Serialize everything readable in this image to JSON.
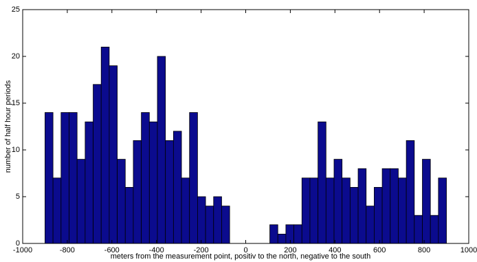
{
  "chart_data": {
    "type": "histogram",
    "xlabel": "meters from the measurement point, positiv to the north, negative to the south",
    "ylabel": "number of half hour periods",
    "bins": [
      -900,
      -864,
      -828,
      -792,
      -756,
      -720,
      -684,
      -648,
      -612,
      -576,
      -540,
      -504,
      -468,
      -432,
      -396,
      -360,
      -324,
      -288,
      -252,
      -216,
      -180,
      -144,
      -108,
      -72,
      -36,
      0,
      36,
      72,
      108,
      144,
      180,
      216,
      252,
      288,
      324,
      360,
      396,
      432,
      468,
      504,
      540,
      576,
      612,
      648,
      684,
      720,
      756,
      792,
      828,
      864,
      900
    ],
    "values": [
      14,
      7,
      14,
      14,
      9,
      13,
      17,
      21,
      19,
      9,
      6,
      11,
      14,
      13,
      20,
      11,
      12,
      7,
      14,
      5,
      4,
      5,
      4,
      0,
      0,
      0,
      0,
      0,
      2,
      1,
      2,
      2,
      7,
      7,
      13,
      7,
      9,
      7,
      6,
      8,
      4,
      6,
      8,
      8,
      7,
      11,
      3,
      9,
      3,
      7
    ],
    "color": "#0b0b8e",
    "xlim": [
      -1000,
      1000
    ],
    "xticks": [
      -1000,
      -800,
      -600,
      -400,
      -200,
      0,
      200,
      400,
      600,
      800,
      1000
    ],
    "ylim": [
      0,
      25
    ],
    "yticks": [
      0,
      5,
      10,
      15,
      20,
      25
    ]
  }
}
